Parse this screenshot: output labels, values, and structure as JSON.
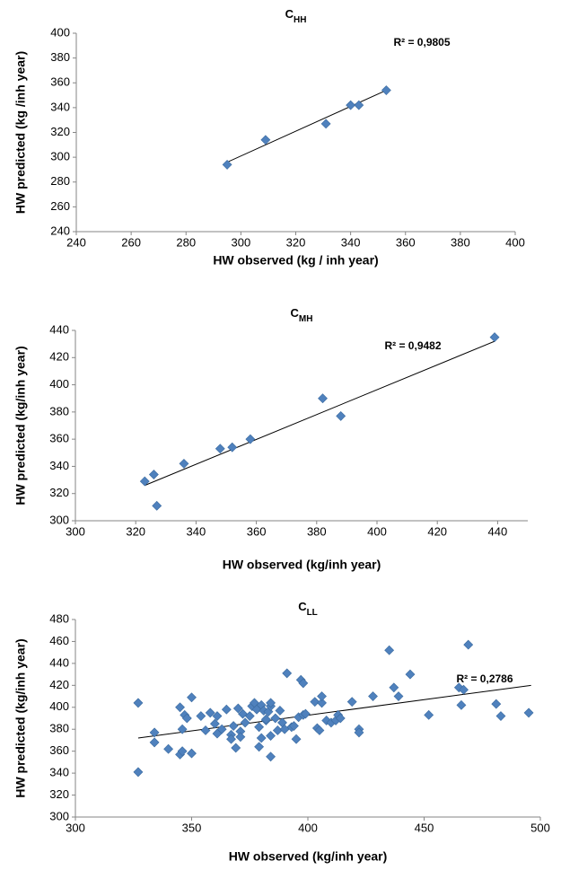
{
  "chart_data": [
    {
      "type": "scatter",
      "title": "C",
      "title_subscript": "HH",
      "x_label": "HW observed (kg / inh year)",
      "y_label": "HW predicted (kg /inh year)",
      "annotation": "R² = 0,9805",
      "color": "#4f81bd",
      "x": [
        295,
        309,
        331,
        340,
        343,
        353
      ],
      "values": [
        294,
        314,
        327,
        342,
        342,
        354
      ],
      "trendline": {
        "x": [
          295,
          353
        ],
        "values": [
          296,
          354
        ]
      },
      "xlim": [
        240,
        400
      ],
      "xticks": [
        240,
        260,
        280,
        300,
        320,
        340,
        360,
        380,
        400
      ],
      "ylim": [
        240,
        400
      ],
      "yticks": [
        240,
        260,
        280,
        300,
        320,
        340,
        360,
        380,
        400
      ]
    },
    {
      "type": "scatter",
      "title": "C",
      "title_subscript": "MH",
      "x_label": "HW observed (kg/inh year)",
      "y_label": "HW predicted (kg/inh year)",
      "annotation": "R² = 0,9482",
      "color": "#4f81bd",
      "x": [
        323,
        326,
        327,
        336,
        348,
        352,
        358,
        382,
        388,
        439
      ],
      "values": [
        329,
        334,
        311,
        342,
        353,
        354,
        360,
        390,
        377,
        435
      ],
      "trendline": {
        "x": [
          323,
          439
        ],
        "values": [
          326,
          432
        ]
      },
      "xlim": [
        300,
        450
      ],
      "xticks": [
        300,
        320,
        340,
        360,
        380,
        400,
        420,
        440
      ],
      "ylim": [
        300,
        440
      ],
      "yticks": [
        300,
        320,
        340,
        360,
        380,
        400,
        420,
        440
      ]
    },
    {
      "type": "scatter",
      "title": "C",
      "title_subscript": "LL",
      "x_label": "HW observed (kg/inh year)",
      "y_label": "HW predicted (kg/inh year)",
      "annotation": "R² = 0,2786",
      "color": "#4f81bd",
      "x": [
        327,
        327,
        334,
        334,
        340,
        345,
        345,
        346,
        346,
        347,
        348,
        350,
        350,
        354,
        356,
        358,
        360,
        361,
        361,
        363,
        365,
        367,
        367,
        368,
        369,
        370,
        371,
        371,
        372,
        373,
        375,
        376,
        377,
        378,
        379,
        379,
        380,
        380,
        381,
        382,
        382,
        383,
        384,
        384,
        384,
        384,
        386,
        387,
        388,
        389,
        390,
        391,
        393,
        394,
        395,
        396,
        397,
        398,
        398,
        399,
        403,
        404,
        405,
        406,
        406,
        408,
        410,
        412,
        413,
        414,
        419,
        422,
        422,
        428,
        435,
        437,
        439,
        444,
        452,
        465,
        466,
        467,
        469,
        481,
        483,
        495
      ],
      "values": [
        404,
        341,
        377,
        368,
        362,
        400,
        357,
        380,
        360,
        393,
        390,
        409,
        358,
        392,
        379,
        395,
        385,
        392,
        376,
        380,
        398,
        375,
        371,
        383,
        363,
        399,
        378,
        373,
        394,
        386,
        392,
        401,
        404,
        398,
        364,
        382,
        372,
        402,
        397,
        388,
        389,
        396,
        401,
        404,
        374,
        355,
        390,
        379,
        397,
        386,
        380,
        431,
        382,
        383,
        371,
        391,
        425,
        393,
        422,
        394,
        405,
        381,
        379,
        404,
        410,
        388,
        386,
        388,
        393,
        390,
        405,
        380,
        377,
        410,
        452,
        418,
        410,
        430,
        393,
        418,
        402,
        416,
        457,
        403,
        392,
        395
      ],
      "trendline": {
        "x": [
          327,
          496
        ],
        "values": [
          372,
          420
        ]
      },
      "xlim": [
        300,
        500
      ],
      "xticks": [
        300,
        350,
        400,
        450,
        500
      ],
      "ylim": [
        300,
        480
      ],
      "yticks": [
        300,
        320,
        340,
        360,
        380,
        400,
        420,
        440,
        460,
        480
      ]
    }
  ]
}
